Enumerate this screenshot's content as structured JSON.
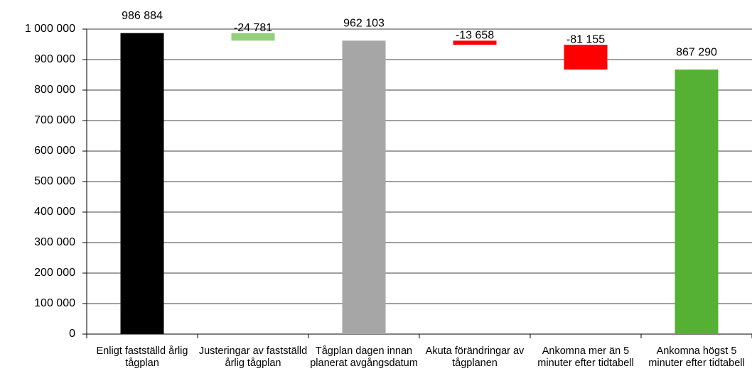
{
  "chart_data": {
    "type": "waterfall",
    "categories": [
      "Enligt fastställd årlig tågplan",
      "Justeringar av fastställd årlig tågplan",
      "Tågplan dagen innan planerat avgångsdatum",
      "Akuta förändringar av tågplanen",
      "Ankomna mer än 5 minuter efter tidtabell",
      "Ankomna högst 5 minuter efter tidtabell"
    ],
    "values": [
      986884,
      -24781,
      962103,
      -13658,
      -81155,
      867290
    ],
    "value_labels": [
      "986 884",
      "-24 781",
      "962 103",
      "-13 658",
      "-81 155",
      "867 290"
    ],
    "is_total": [
      true,
      false,
      true,
      false,
      false,
      true
    ],
    "colors": [
      "#000000",
      "#92d07a",
      "#a6a6a6",
      "#ff0000",
      "#ff0000",
      "#55b133"
    ],
    "ylim": [
      0,
      1000000
    ],
    "yticks": [
      0,
      {
        "value": 100000,
        "label": "100 000"
      },
      {
        "value": 200000,
        "label": "200 000"
      },
      {
        "value": 300000,
        "label": "300 000"
      },
      {
        "value": 400000,
        "label": "400 000"
      },
      {
        "value": 500000,
        "label": "500 000"
      },
      {
        "value": 600000,
        "label": "600 000"
      },
      {
        "value": 700000,
        "label": "700 000"
      },
      {
        "value": 800000,
        "label": "800 000"
      },
      {
        "value": 900000,
        "label": "900 000"
      },
      {
        "value": 1000000,
        "label": "1 000 000"
      }
    ],
    "grid": true
  }
}
